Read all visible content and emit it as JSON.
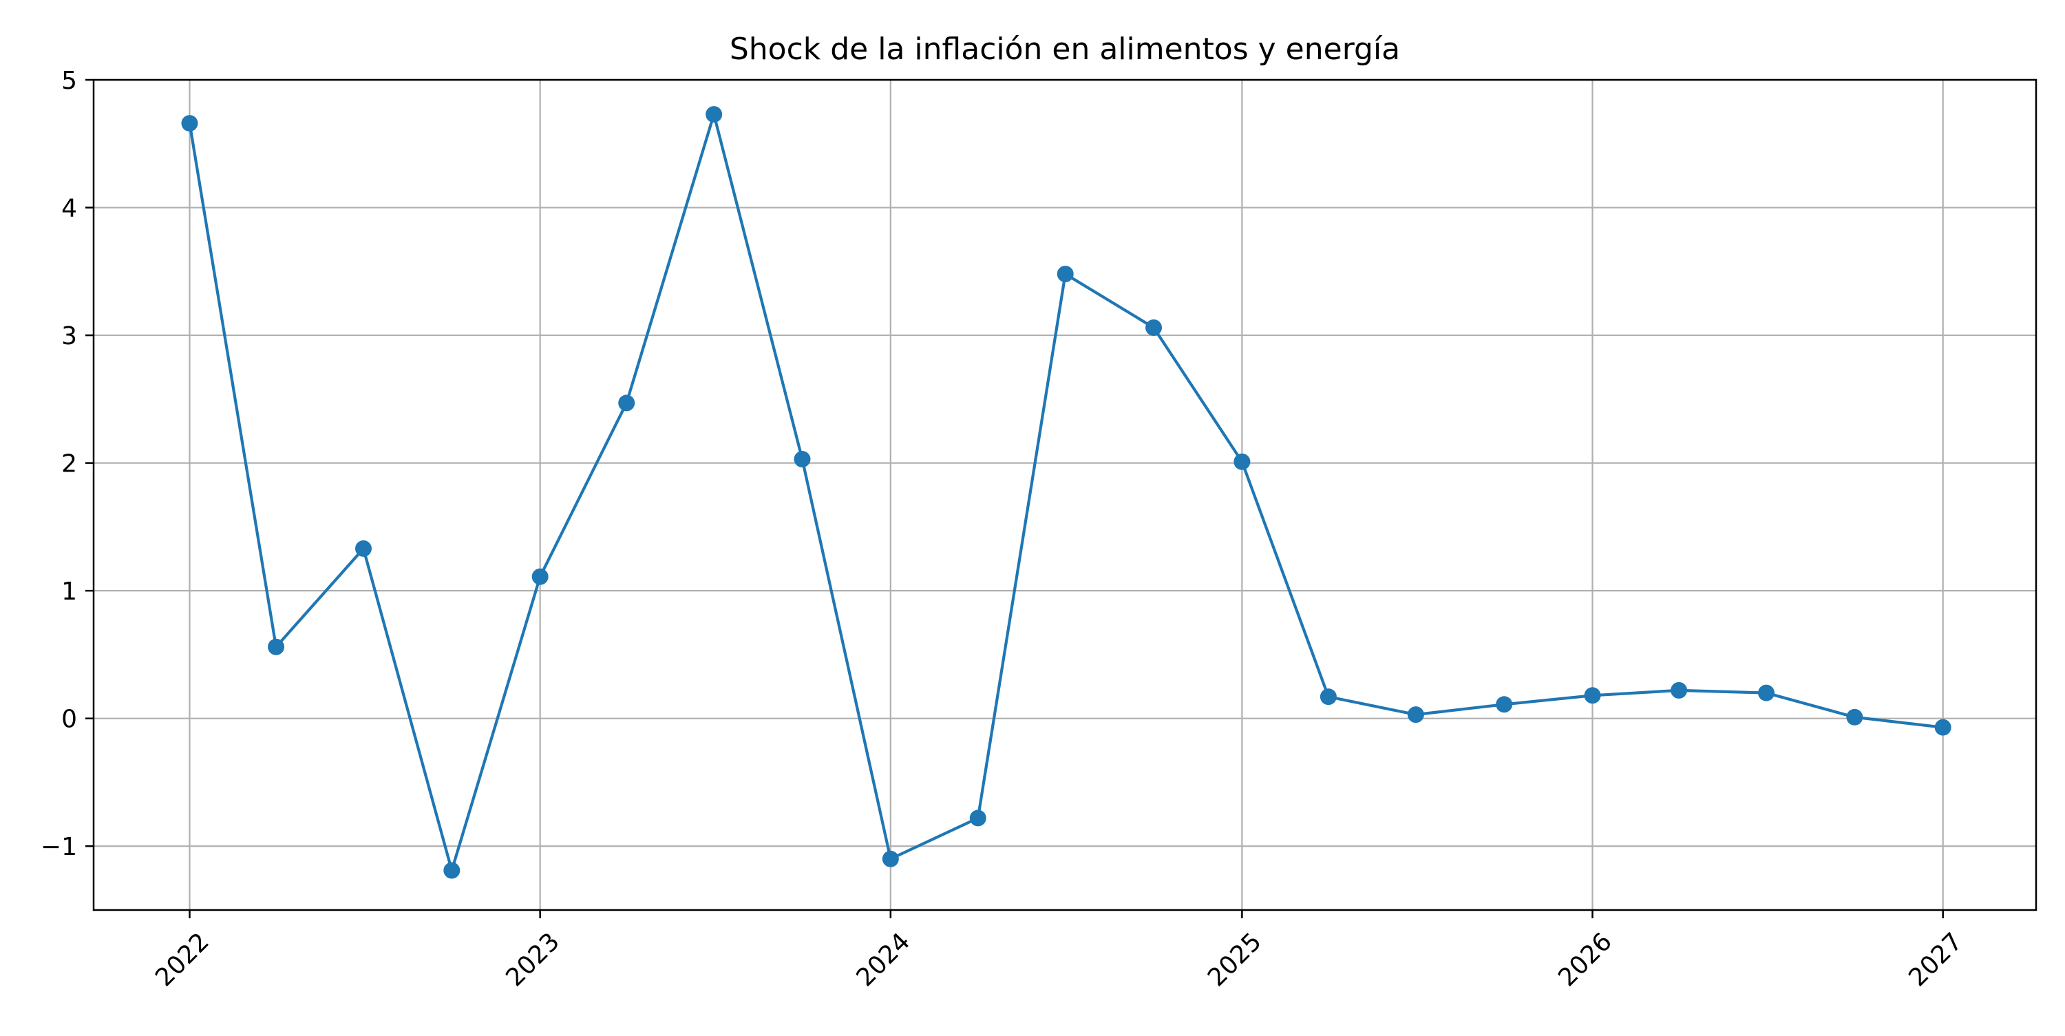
{
  "chart_data": {
    "type": "line",
    "title": "Shock de la inflación en alimentos y energía",
    "xlabel": "",
    "ylabel": "",
    "x_axis": {
      "type": "date",
      "range": [
        "2021-09-23",
        "2027-04-08"
      ],
      "ticks": [
        "2022",
        "2023",
        "2024",
        "2025",
        "2026",
        "2027"
      ],
      "tick_label_rotation": 45
    },
    "y_axis": {
      "range": [
        -1.5,
        5.0
      ],
      "ticks": [
        -1,
        0,
        1,
        2,
        3,
        4,
        5
      ],
      "tick_labels": [
        "−1",
        "0",
        "1",
        "2",
        "3",
        "4",
        "5"
      ]
    },
    "grid": true,
    "legend": "none",
    "series": [
      {
        "color": "#1f77b4",
        "marker": "circle",
        "points": [
          {
            "x": "2022-01-01",
            "y": 4.66
          },
          {
            "x": "2022-04-01",
            "y": 0.56
          },
          {
            "x": "2022-07-01",
            "y": 1.33
          },
          {
            "x": "2022-10-01",
            "y": -1.19
          },
          {
            "x": "2023-01-01",
            "y": 1.11
          },
          {
            "x": "2023-04-01",
            "y": 2.47
          },
          {
            "x": "2023-07-01",
            "y": 4.73
          },
          {
            "x": "2023-10-01",
            "y": 2.03
          },
          {
            "x": "2024-01-01",
            "y": -1.1
          },
          {
            "x": "2024-04-01",
            "y": -0.78
          },
          {
            "x": "2024-07-01",
            "y": 3.48
          },
          {
            "x": "2024-10-01",
            "y": 3.06
          },
          {
            "x": "2025-01-01",
            "y": 2.01
          },
          {
            "x": "2025-04-01",
            "y": 0.17
          },
          {
            "x": "2025-07-01",
            "y": 0.03
          },
          {
            "x": "2025-10-01",
            "y": 0.11
          },
          {
            "x": "2026-01-01",
            "y": 0.18
          },
          {
            "x": "2026-04-01",
            "y": 0.22
          },
          {
            "x": "2026-07-01",
            "y": 0.2
          },
          {
            "x": "2026-10-01",
            "y": 0.01
          },
          {
            "x": "2027-01-01",
            "y": -0.07
          }
        ]
      }
    ]
  }
}
